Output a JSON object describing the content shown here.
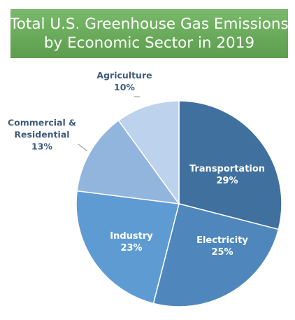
{
  "title": {
    "line1": "Total U.S. Greenhouse Gas Emissions",
    "line2": "by Economic Sector in 2019"
  },
  "chart_data": {
    "type": "pie",
    "title": "Total U.S. Greenhouse Gas Emissions by Economic Sector in 2019",
    "categories": [
      "Transportation",
      "Electricity",
      "Industry",
      "Commercial & Residential",
      "Agriculture"
    ],
    "values": [
      29,
      25,
      23,
      13,
      10
    ],
    "value_labels": [
      "29%",
      "25%",
      "23%",
      "13%",
      "10%"
    ],
    "colors": [
      "#40709e",
      "#4f87bd",
      "#5f9bd3",
      "#92b5de",
      "#bdd2ec"
    ],
    "legend": "none"
  }
}
